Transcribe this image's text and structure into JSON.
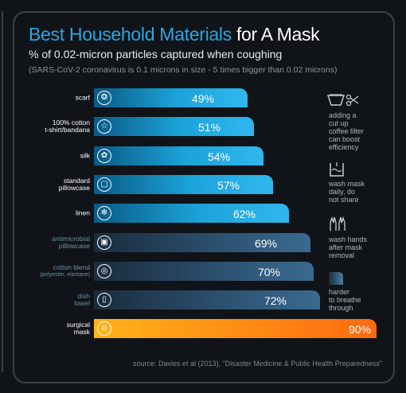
{
  "title_part1": "Best Household Materials",
  "title_part2": "for A Mask",
  "subtitle": "% of 0.02-micron particles captured when coughing",
  "note": "(SARS-CoV-2 coronavirus is 0.1 microns in size - 5 times bigger than 0.02 microns)",
  "source": "source: Davies et al (2013), \"Disaster Medicine & Public Health Preparedness\"",
  "colors": {
    "title_accent": "#2aa6e4",
    "bar_light": "#1ca4da",
    "bar_dark": "#2d5272",
    "bar_highlight": "#ff8a14",
    "background": "#101418"
  },
  "chart_data": {
    "type": "bar",
    "orientation": "horizontal",
    "unit": "%",
    "categories": [
      [
        "scarf"
      ],
      [
        "100% cotton",
        "t-shirt/bandana"
      ],
      [
        "silk"
      ],
      [
        "standard",
        "pillowcase"
      ],
      [
        "linen"
      ],
      [
        "antimicrobial",
        "pillowcase"
      ],
      [
        "cotton blend",
        "(polyester, elastane)"
      ],
      [
        "dish",
        "towel"
      ],
      [
        "surgical",
        "mask"
      ]
    ],
    "values": [
      49,
      51,
      54,
      57,
      62,
      69,
      70,
      72,
      90
    ],
    "value_labels": [
      "49%",
      "51%",
      "54%",
      "57%",
      "62%",
      "69%",
      "70%",
      "72%",
      "90%"
    ],
    "style": [
      "light",
      "light",
      "light",
      "light",
      "light",
      "dark",
      "dark",
      "dark",
      "orange"
    ],
    "icons": [
      "scarf-icon",
      "tshirt-icon",
      "silk-icon",
      "pillowcase-icon",
      "linen-icon",
      "antimicrobial-pillowcase-icon",
      "cotton-blend-icon",
      "dish-towel-icon",
      "surgical-mask-icon"
    ],
    "xlim": [
      0,
      90
    ]
  },
  "side_notes": [
    {
      "icon": "coffee-filter-scissors-icon",
      "text": [
        "adding a",
        "cut up",
        "coffee filter",
        "can boost",
        "efficiency"
      ]
    },
    {
      "icon": "wash-bucket-icon",
      "text": [
        "wash mask",
        "daily, do",
        "not share"
      ]
    },
    {
      "icon": "wash-hands-icon",
      "text": [
        "wash hands",
        "after mask",
        "removal"
      ]
    },
    {
      "icon": "breathing-gradient-icon",
      "text": [
        "harder",
        "to breathe",
        "through"
      ]
    }
  ]
}
